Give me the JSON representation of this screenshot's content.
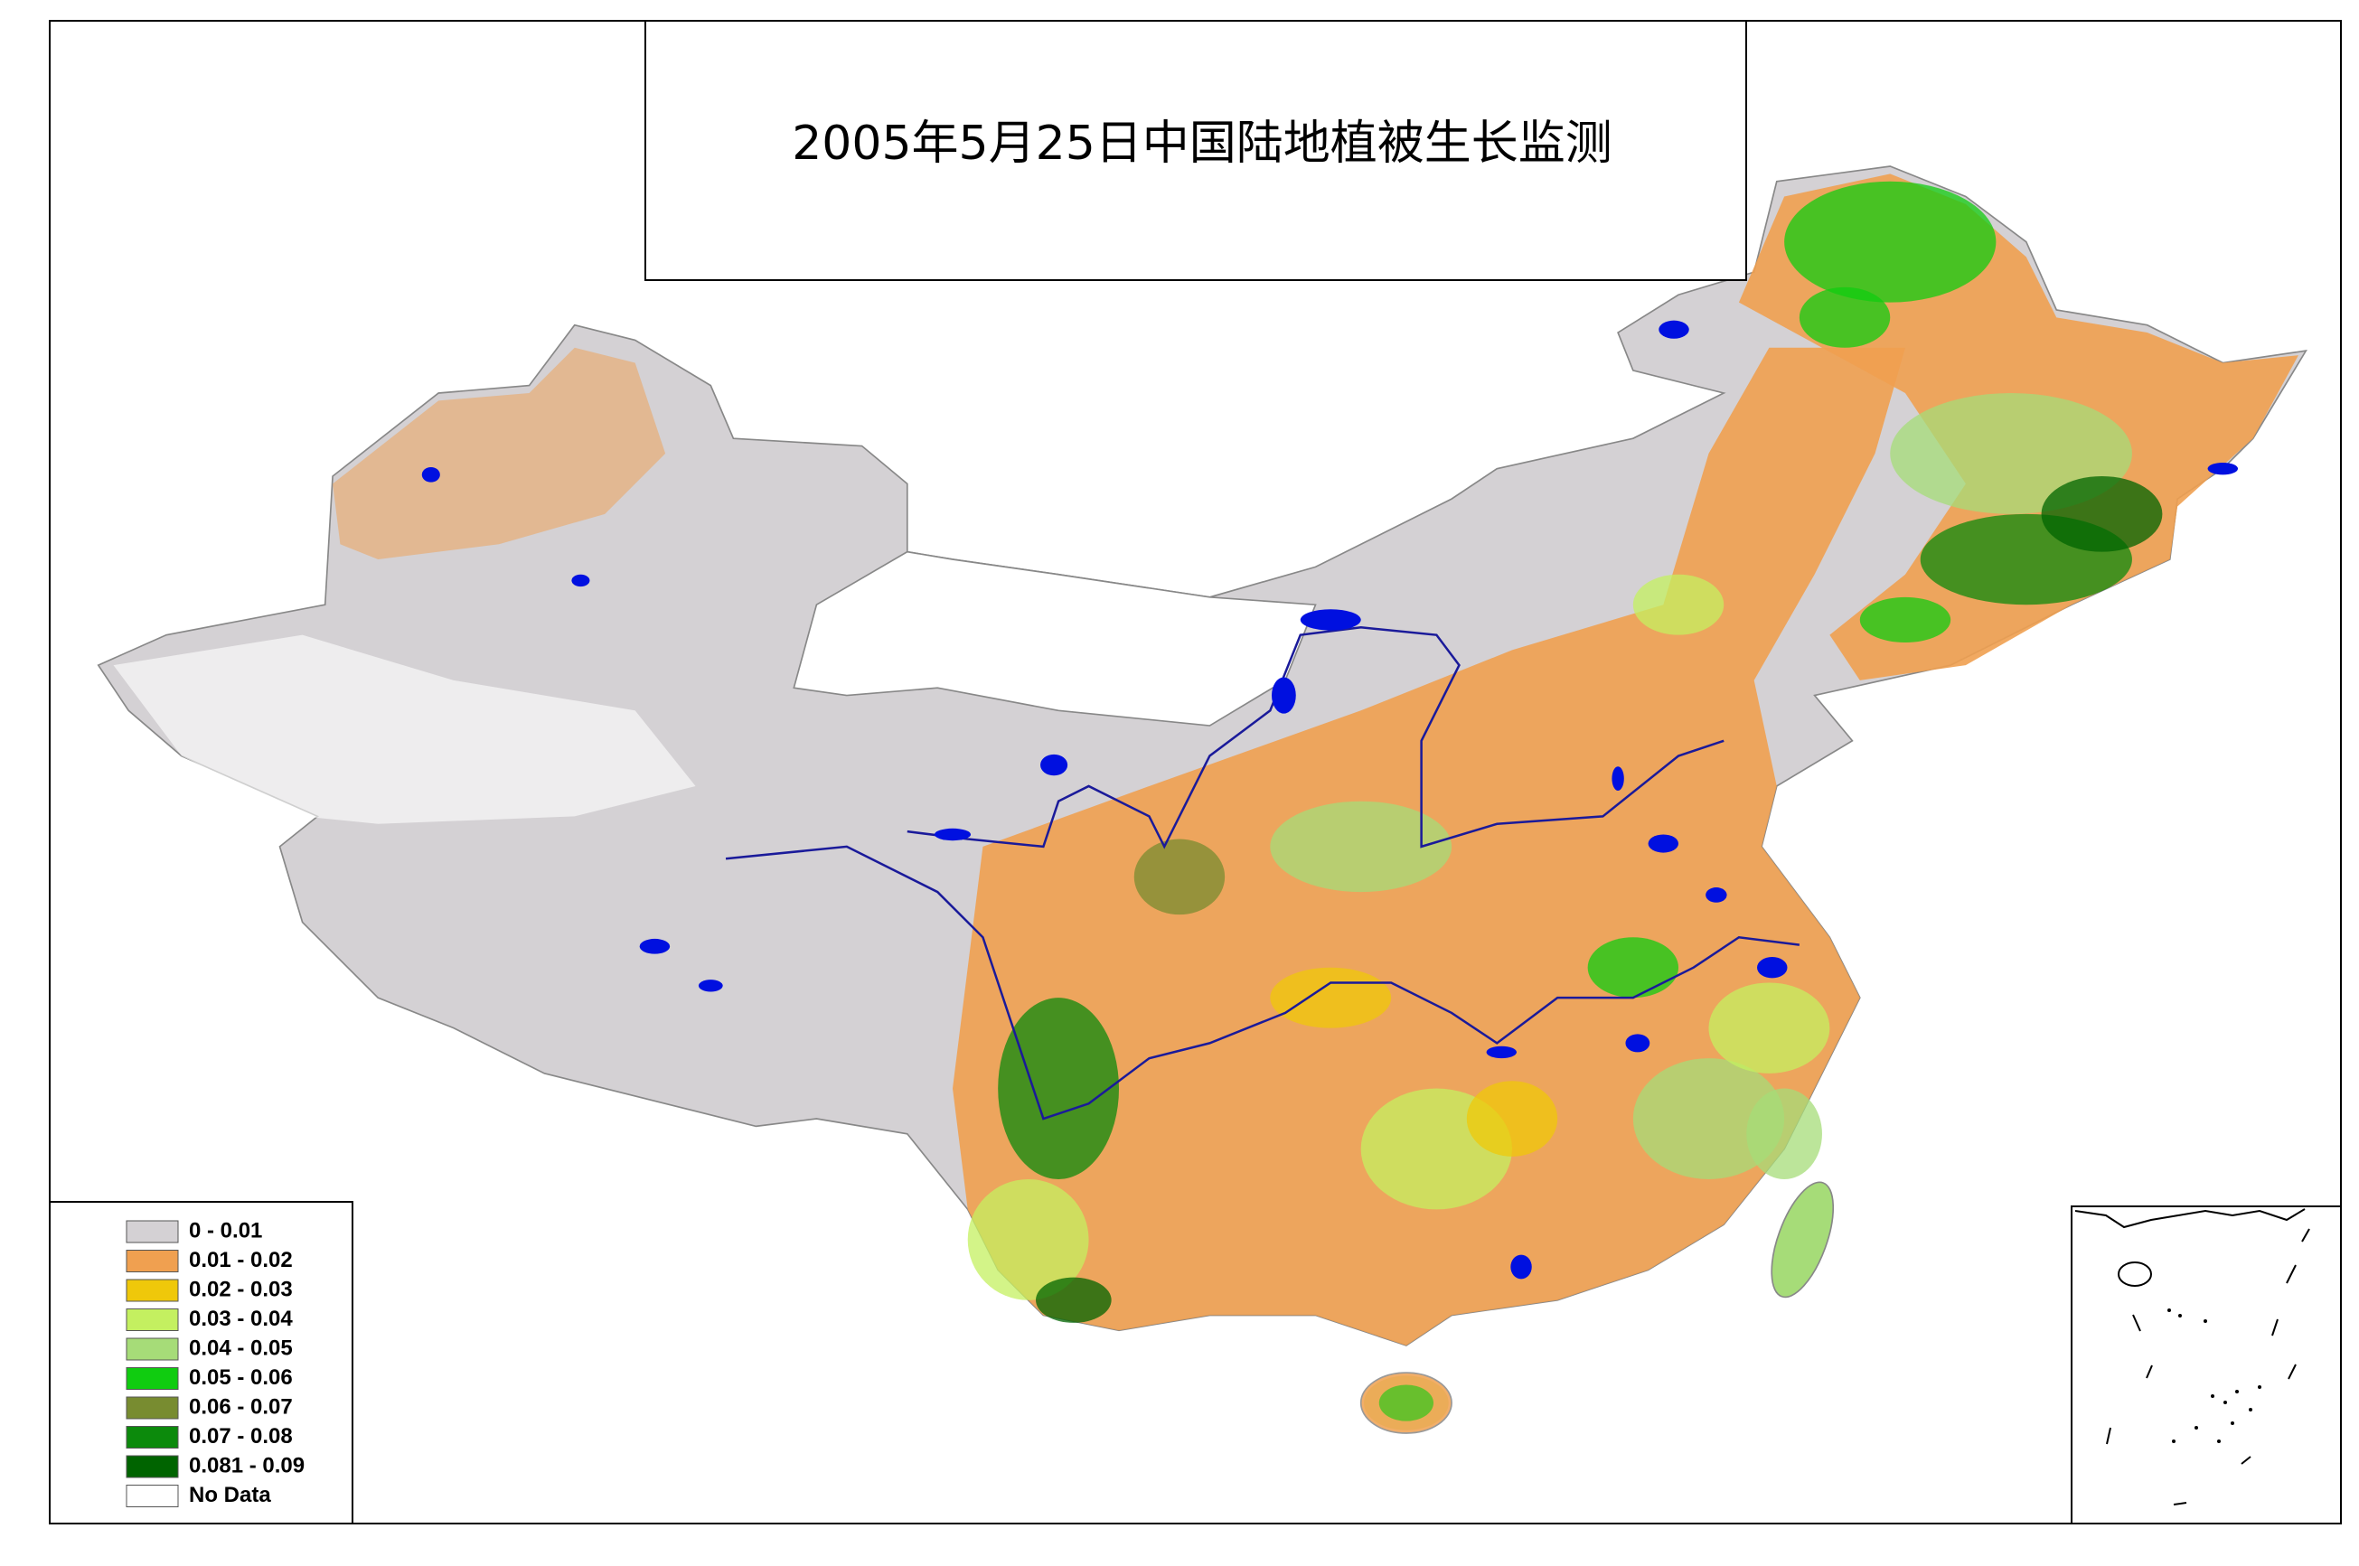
{
  "title": "2005年5月25日中国陆地植被生长监测",
  "legend": {
    "items": [
      {
        "label": "0 - 0.01",
        "color": "#d4d1d4"
      },
      {
        "label": "0.01 - 0.02",
        "color": "#f0a050"
      },
      {
        "label": "0.02 - 0.03",
        "color": "#efc80a"
      },
      {
        "label": "0.03 - 0.04",
        "color": "#c4f060"
      },
      {
        "label": "0.04 - 0.05",
        "color": "#a6dc78"
      },
      {
        "label": "0.05 - 0.06",
        "color": "#10cc10"
      },
      {
        "label": "0.06 - 0.07",
        "color": "#788c30"
      },
      {
        "label": "0.07 - 0.08",
        "color": "#0c8a0c"
      },
      {
        "label": "0.081 - 0.09",
        "color": "#006400"
      },
      {
        "label": "No Data",
        "color": "#ffffff"
      }
    ]
  }
}
